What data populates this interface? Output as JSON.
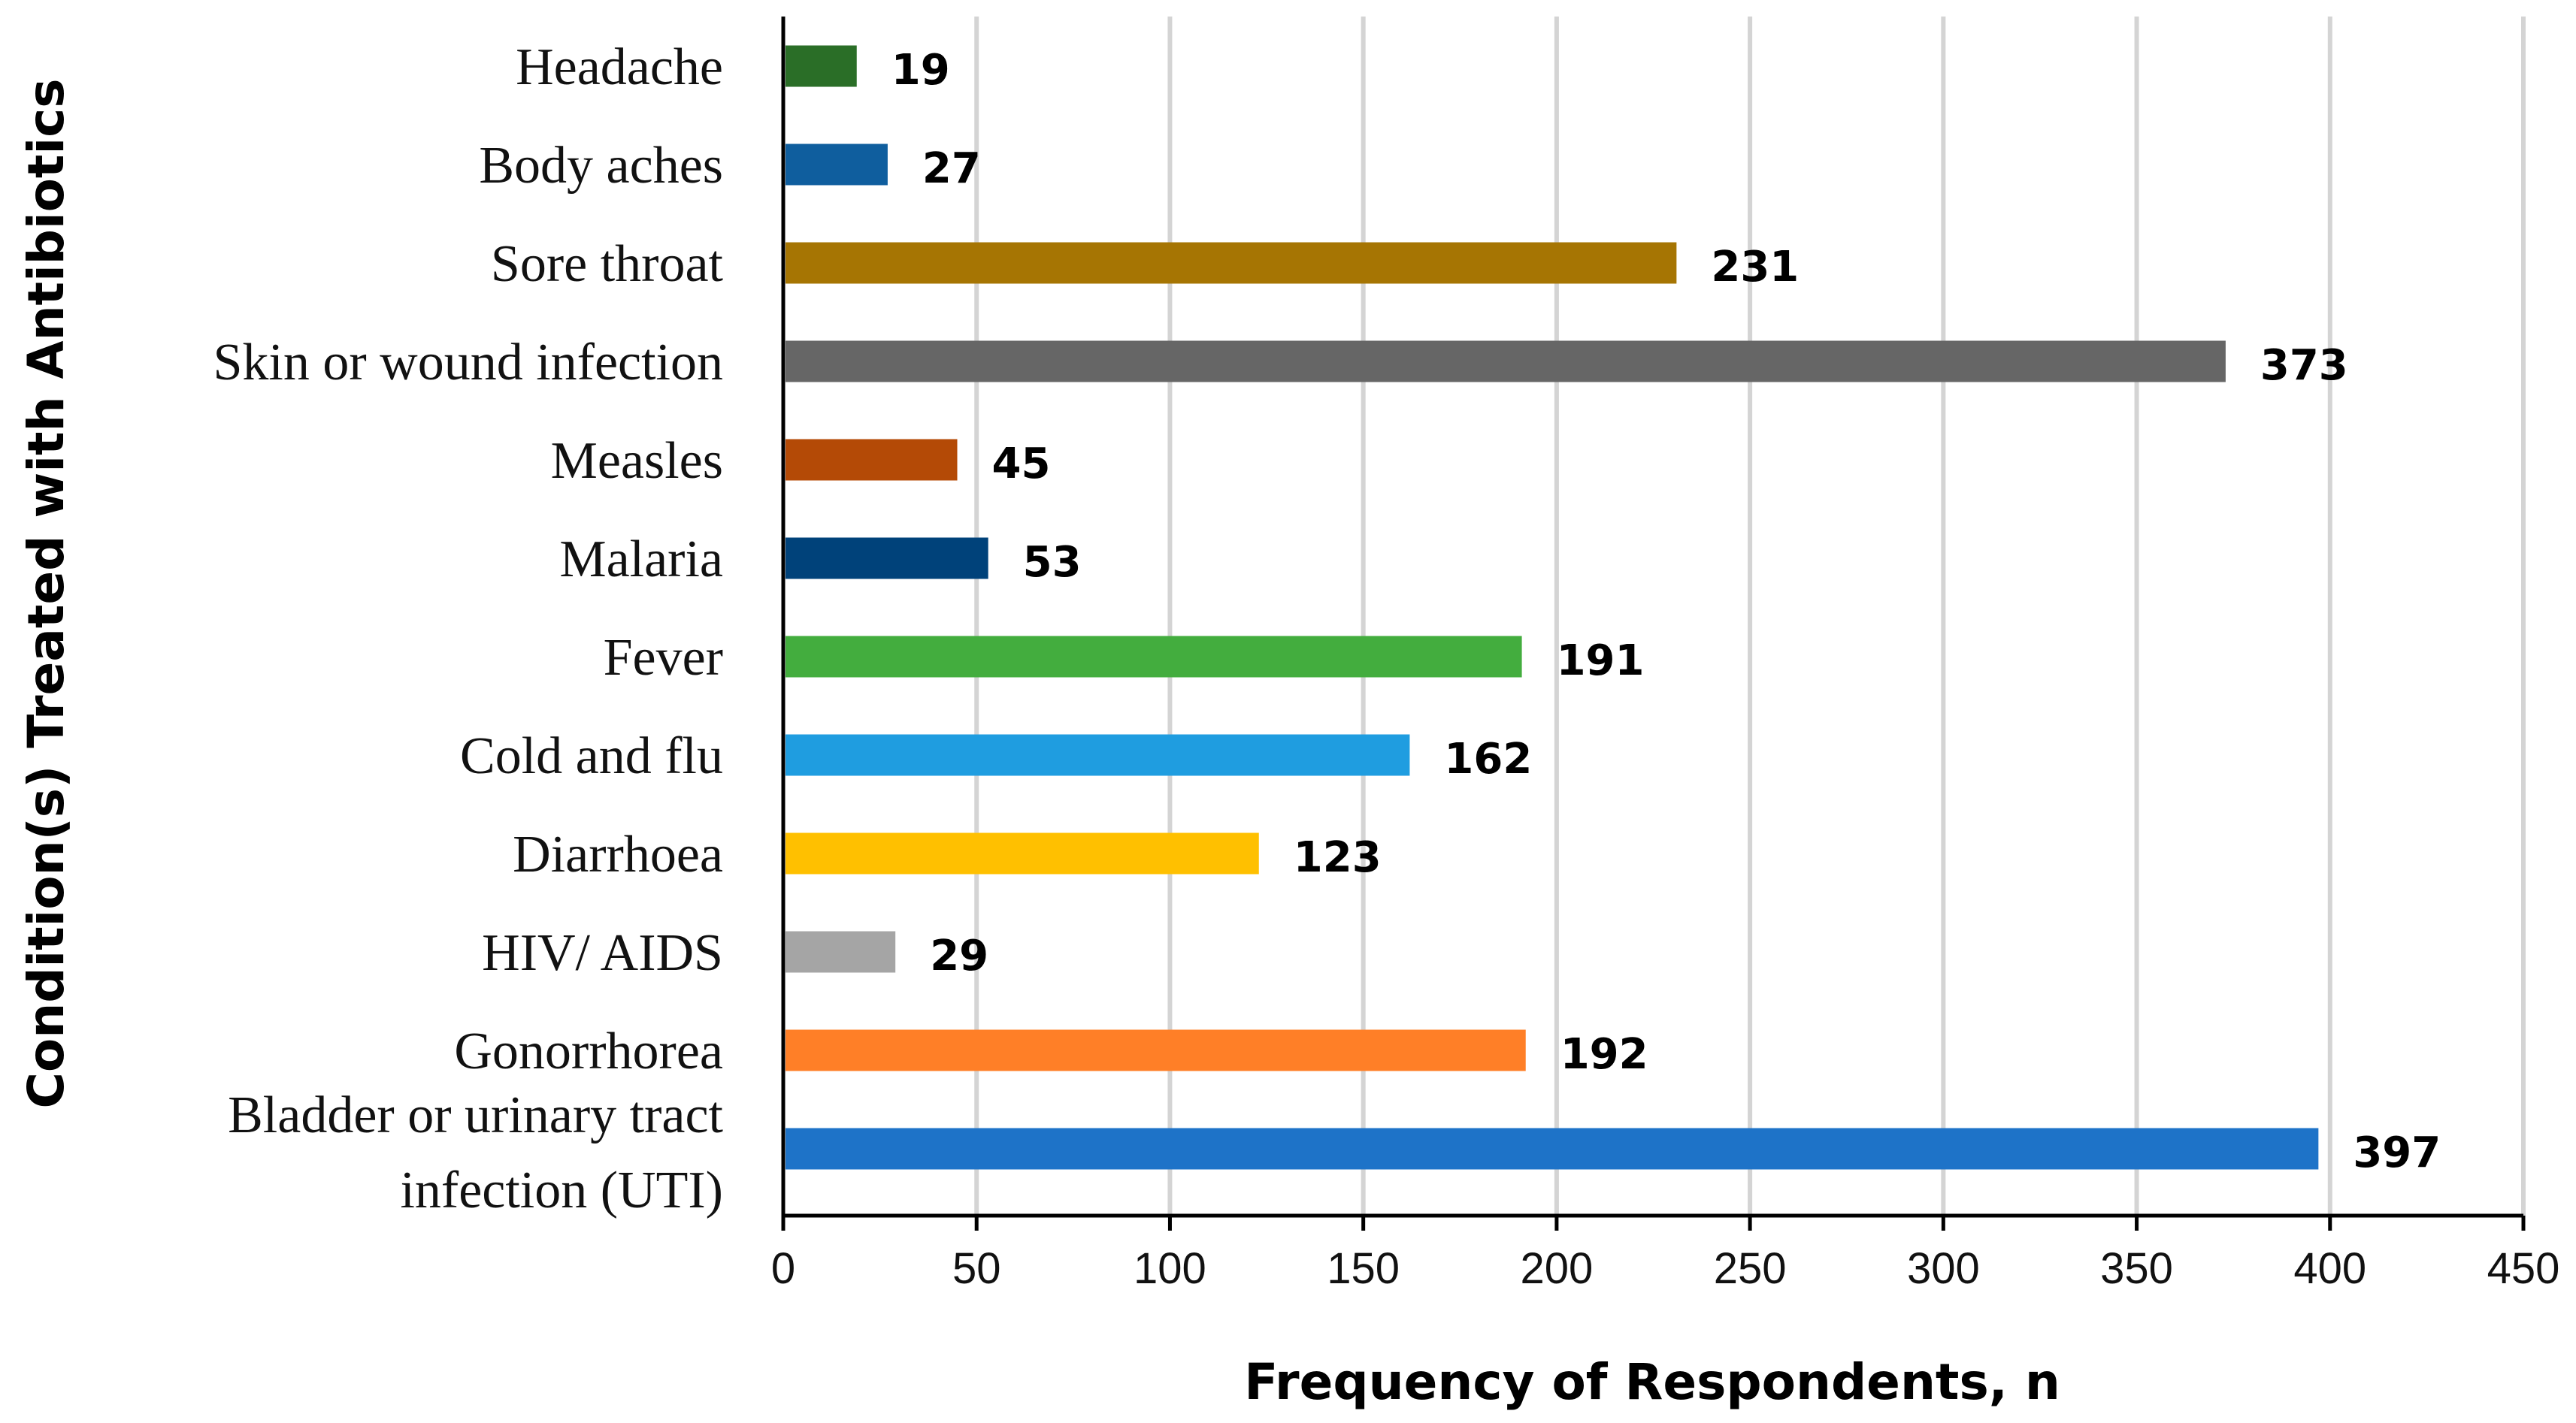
{
  "chart_data": {
    "type": "bar",
    "orientation": "horizontal",
    "title": "",
    "xlabel": "Frequency of Respondents, n",
    "ylabel": "Condition(s) Treated with Antibiotics",
    "xlim": [
      0,
      450
    ],
    "xticks": [
      0,
      50,
      100,
      150,
      200,
      250,
      300,
      350,
      400,
      450
    ],
    "grid": "vertical",
    "legend": "none",
    "categories": [
      {
        "label": [
          "Headache"
        ],
        "value": 19,
        "color": "#2a6e27"
      },
      {
        "label": [
          "Body aches"
        ],
        "value": 27,
        "color": "#0f5e9e"
      },
      {
        "label": [
          "Sore throat"
        ],
        "value": 231,
        "color": "#a67503"
      },
      {
        "label": [
          "Skin or wound infection"
        ],
        "value": 373,
        "color": "#666666"
      },
      {
        "label": [
          "Measles"
        ],
        "value": 45,
        "color": "#b44a06"
      },
      {
        "label": [
          "Malaria"
        ],
        "value": 53,
        "color": "#00427a"
      },
      {
        "label": [
          "Fever"
        ],
        "value": 191,
        "color": "#43ad3e"
      },
      {
        "label": [
          "Cold and flu"
        ],
        "value": 162,
        "color": "#1f9de0"
      },
      {
        "label": [
          "Diarrhoea"
        ],
        "value": 123,
        "color": "#ffc000"
      },
      {
        "label": [
          "HIV/ AIDS"
        ],
        "value": 29,
        "color": "#a5a5a5"
      },
      {
        "label": [
          "Gonorrhorea"
        ],
        "value": 192,
        "color": "#ff7f27"
      },
      {
        "label": [
          "Bladder or urinary tract",
          "infection (UTI)"
        ],
        "value": 397,
        "color": "#1e73c8"
      }
    ]
  }
}
